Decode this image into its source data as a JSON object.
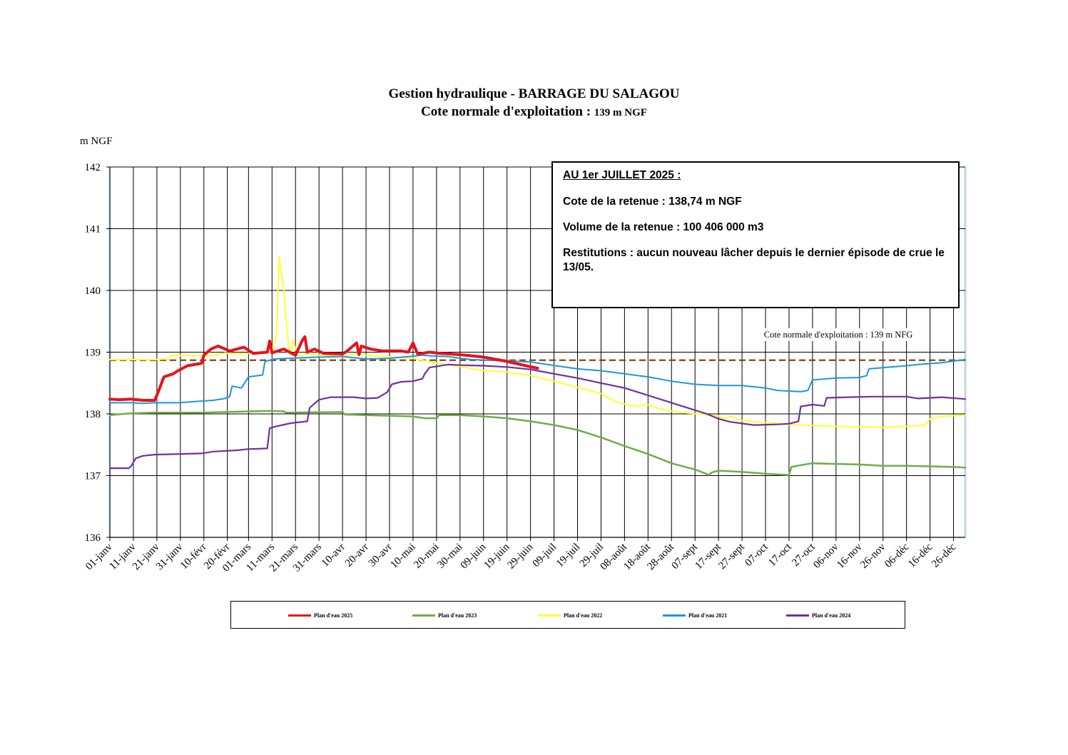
{
  "chart_data": {
    "type": "line",
    "title": "Gestion hydraulique - BARRAGE DU SALAGOU",
    "subtitle_main": "Cote normale d'exploitation : ",
    "subtitle_value": "139 m NGF",
    "ylabel": "m NGF",
    "ylim": [
      136,
      142
    ],
    "yticks": [
      "136",
      "137",
      "138",
      "139",
      "140",
      "141",
      "142"
    ],
    "xlim": [
      1,
      365
    ],
    "grid": true,
    "x_ticks": [
      {
        "day": 1,
        "label": "01-janv"
      },
      {
        "day": 11,
        "label": "11-janv"
      },
      {
        "day": 21,
        "label": "21-janv"
      },
      {
        "day": 31,
        "label": "31-janv"
      },
      {
        "day": 41,
        "label": "10-févr"
      },
      {
        "day": 51,
        "label": "20-févr"
      },
      {
        "day": 60,
        "label": "01-mars"
      },
      {
        "day": 70,
        "label": "11-mars"
      },
      {
        "day": 80,
        "label": "21-mars"
      },
      {
        "day": 90,
        "label": "31-mars"
      },
      {
        "day": 100,
        "label": "10-avr"
      },
      {
        "day": 110,
        "label": "20-avr"
      },
      {
        "day": 120,
        "label": "30-avr"
      },
      {
        "day": 130,
        "label": "10-mai"
      },
      {
        "day": 140,
        "label": "20-mai"
      },
      {
        "day": 150,
        "label": "30-mai"
      },
      {
        "day": 160,
        "label": "09-juin"
      },
      {
        "day": 170,
        "label": "19-juin"
      },
      {
        "day": 180,
        "label": "29-juin"
      },
      {
        "day": 190,
        "label": "09-juil"
      },
      {
        "day": 200,
        "label": "19-juil"
      },
      {
        "day": 210,
        "label": "29-juil"
      },
      {
        "day": 220,
        "label": "08-août"
      },
      {
        "day": 230,
        "label": "18-août"
      },
      {
        "day": 240,
        "label": "28-août"
      },
      {
        "day": 250,
        "label": "07-sept"
      },
      {
        "day": 260,
        "label": "17-sept"
      },
      {
        "day": 270,
        "label": "27-sept"
      },
      {
        "day": 280,
        "label": "07-oct"
      },
      {
        "day": 290,
        "label": "17-oct"
      },
      {
        "day": 300,
        "label": "27-oct"
      },
      {
        "day": 310,
        "label": "06-nov"
      },
      {
        "day": 320,
        "label": "16-nov"
      },
      {
        "day": 330,
        "label": "26-nov"
      },
      {
        "day": 340,
        "label": "06-déc"
      },
      {
        "day": 350,
        "label": "16-déc"
      },
      {
        "day": 360,
        "label": "26-déc"
      }
    ],
    "reference_line": {
      "label": "Cote normale d'exploitation : 139 m NFG",
      "value": 138.87,
      "color": "#7a4a12"
    },
    "series": [
      {
        "name": "Plan d'eau 2023",
        "color": "#70ad47",
        "width": 2.5,
        "points": [
          [
            1,
            137.98
          ],
          [
            10,
            138.01
          ],
          [
            20,
            138.02
          ],
          [
            40,
            138.02
          ],
          [
            60,
            138.04
          ],
          [
            70,
            138.05
          ],
          [
            75,
            138.04
          ],
          [
            76,
            138.02
          ],
          [
            100,
            138.03
          ],
          [
            101,
            137.99
          ],
          [
            110,
            137.98
          ],
          [
            130,
            137.96
          ],
          [
            135,
            137.93
          ],
          [
            140,
            137.93
          ],
          [
            141,
            137.98
          ],
          [
            150,
            137.98
          ],
          [
            160,
            137.96
          ],
          [
            170,
            137.93
          ],
          [
            180,
            137.88
          ],
          [
            190,
            137.82
          ],
          [
            200,
            137.74
          ],
          [
            210,
            137.62
          ],
          [
            220,
            137.48
          ],
          [
            230,
            137.35
          ],
          [
            240,
            137.2
          ],
          [
            250,
            137.1
          ],
          [
            256,
            137.01
          ],
          [
            257,
            137.05
          ],
          [
            260,
            137.08
          ],
          [
            270,
            137.06
          ],
          [
            280,
            137.03
          ],
          [
            290,
            137.01
          ],
          [
            291,
            137.14
          ],
          [
            295,
            137.17
          ],
          [
            300,
            137.2
          ],
          [
            310,
            137.19
          ],
          [
            320,
            137.18
          ],
          [
            330,
            137.16
          ],
          [
            340,
            137.16
          ],
          [
            350,
            137.15
          ],
          [
            360,
            137.14
          ],
          [
            365,
            137.13
          ]
        ]
      },
      {
        "name": "Plan d'eau 2022",
        "color": "#ffff33",
        "width": 2,
        "points": [
          [
            1,
            138.88
          ],
          [
            20,
            138.88
          ],
          [
            26,
            138.89
          ],
          [
            27,
            138.95
          ],
          [
            45,
            138.94
          ],
          [
            50,
            138.99
          ],
          [
            55,
            138.97
          ],
          [
            65,
            138.99
          ],
          [
            70,
            139.0
          ],
          [
            72,
            139.3
          ],
          [
            73,
            140.55
          ],
          [
            75,
            140.0
          ],
          [
            77,
            139.1
          ],
          [
            78,
            138.95
          ],
          [
            79,
            139.2
          ],
          [
            81,
            138.93
          ],
          [
            85,
            138.98
          ],
          [
            90,
            138.95
          ],
          [
            95,
            138.95
          ],
          [
            100,
            138.92
          ],
          [
            105,
            138.98
          ],
          [
            110,
            138.95
          ],
          [
            130,
            138.9
          ],
          [
            140,
            138.82
          ],
          [
            150,
            138.77
          ],
          [
            160,
            138.7
          ],
          [
            170,
            138.68
          ],
          [
            180,
            138.62
          ],
          [
            190,
            138.53
          ],
          [
            200,
            138.43
          ],
          [
            210,
            138.33
          ],
          [
            216,
            138.2
          ],
          [
            222,
            138.14
          ],
          [
            226,
            138.12
          ],
          [
            229,
            138.16
          ],
          [
            235,
            138.08
          ],
          [
            245,
            138.02
          ],
          [
            260,
            137.97
          ],
          [
            262,
            137.92
          ],
          [
            265,
            137.96
          ],
          [
            270,
            137.89
          ],
          [
            280,
            137.86
          ],
          [
            290,
            137.83
          ],
          [
            300,
            137.81
          ],
          [
            310,
            137.8
          ],
          [
            318,
            137.79
          ],
          [
            325,
            137.79
          ],
          [
            330,
            137.78
          ],
          [
            340,
            137.8
          ],
          [
            348,
            137.82
          ],
          [
            350,
            137.92
          ],
          [
            355,
            137.96
          ],
          [
            365,
            137.98
          ]
        ]
      },
      {
        "name": "Plan d'eau 2021",
        "color": "#1f96dd",
        "width": 2,
        "points": [
          [
            1,
            138.18
          ],
          [
            10,
            138.18
          ],
          [
            15,
            138.17
          ],
          [
            20,
            138.18
          ],
          [
            30,
            138.18
          ],
          [
            37,
            138.2
          ],
          [
            45,
            138.22
          ],
          [
            50,
            138.25
          ],
          [
            52,
            138.28
          ],
          [
            53,
            138.45
          ],
          [
            57,
            138.42
          ],
          [
            60,
            138.6
          ],
          [
            66,
            138.63
          ],
          [
            67,
            138.85
          ],
          [
            71,
            138.89
          ],
          [
            90,
            138.92
          ],
          [
            100,
            138.93
          ],
          [
            110,
            138.89
          ],
          [
            120,
            138.9
          ],
          [
            134,
            138.95
          ],
          [
            138,
            138.94
          ],
          [
            145,
            138.93
          ],
          [
            150,
            138.9
          ],
          [
            155,
            138.88
          ],
          [
            175,
            138.85
          ],
          [
            180,
            138.84
          ],
          [
            200,
            138.73
          ],
          [
            210,
            138.7
          ],
          [
            220,
            138.65
          ],
          [
            230,
            138.6
          ],
          [
            240,
            138.53
          ],
          [
            250,
            138.48
          ],
          [
            260,
            138.46
          ],
          [
            270,
            138.46
          ],
          [
            280,
            138.42
          ],
          [
            285,
            138.38
          ],
          [
            295,
            138.36
          ],
          [
            298,
            138.38
          ],
          [
            300,
            138.55
          ],
          [
            310,
            138.58
          ],
          [
            320,
            138.59
          ],
          [
            323,
            138.62
          ],
          [
            324,
            138.73
          ],
          [
            340,
            138.78
          ],
          [
            345,
            138.8
          ],
          [
            355,
            138.83
          ],
          [
            365,
            138.88
          ]
        ]
      },
      {
        "name": "Plan d'eau 2024",
        "color": "#7030a0",
        "width": 2.2,
        "points": [
          [
            1,
            137.12
          ],
          [
            5,
            137.12
          ],
          [
            9,
            137.12
          ],
          [
            10,
            137.15
          ],
          [
            12,
            137.28
          ],
          [
            15,
            137.32
          ],
          [
            20,
            137.34
          ],
          [
            40,
            137.36
          ],
          [
            45,
            137.39
          ],
          [
            55,
            137.41
          ],
          [
            60,
            137.43
          ],
          [
            68,
            137.44
          ],
          [
            69,
            137.77
          ],
          [
            72,
            137.8
          ],
          [
            78,
            137.85
          ],
          [
            85,
            137.88
          ],
          [
            86,
            138.1
          ],
          [
            90,
            138.23
          ],
          [
            95,
            138.27
          ],
          [
            105,
            138.27
          ],
          [
            110,
            138.25
          ],
          [
            115,
            138.26
          ],
          [
            119,
            138.35
          ],
          [
            121,
            138.48
          ],
          [
            125,
            138.52
          ],
          [
            130,
            138.53
          ],
          [
            134,
            138.57
          ],
          [
            135,
            138.65
          ],
          [
            137,
            138.75
          ],
          [
            145,
            138.8
          ],
          [
            150,
            138.79
          ],
          [
            160,
            138.78
          ],
          [
            170,
            138.76
          ],
          [
            180,
            138.72
          ],
          [
            190,
            138.65
          ],
          [
            200,
            138.58
          ],
          [
            210,
            138.5
          ],
          [
            220,
            138.42
          ],
          [
            230,
            138.3
          ],
          [
            240,
            138.18
          ],
          [
            250,
            138.06
          ],
          [
            255,
            138.0
          ],
          [
            260,
            137.92
          ],
          [
            265,
            137.87
          ],
          [
            275,
            137.82
          ],
          [
            285,
            137.83
          ],
          [
            290,
            137.84
          ],
          [
            294,
            137.88
          ],
          [
            295,
            138.12
          ],
          [
            300,
            138.15
          ],
          [
            305,
            138.13
          ],
          [
            306,
            138.26
          ],
          [
            315,
            138.27
          ],
          [
            325,
            138.28
          ],
          [
            340,
            138.28
          ],
          [
            345,
            138.25
          ],
          [
            355,
            138.27
          ],
          [
            365,
            138.24
          ]
        ]
      },
      {
        "name": "Plan d'eau 2025",
        "color": "#e8121c",
        "width": 4,
        "points": [
          [
            1,
            138.24
          ],
          [
            5,
            138.23
          ],
          [
            10,
            138.24
          ],
          [
            15,
            138.22
          ],
          [
            20,
            138.22
          ],
          [
            21,
            138.3
          ],
          [
            24,
            138.6
          ],
          [
            28,
            138.65
          ],
          [
            30,
            138.7
          ],
          [
            34,
            138.78
          ],
          [
            40,
            138.82
          ],
          [
            41,
            138.95
          ],
          [
            44,
            139.05
          ],
          [
            47,
            139.1
          ],
          [
            52,
            139.02
          ],
          [
            55,
            139.05
          ],
          [
            58,
            139.08
          ],
          [
            62,
            138.98
          ],
          [
            68,
            139.0
          ],
          [
            69,
            139.18
          ],
          [
            70,
            138.99
          ],
          [
            75,
            139.05
          ],
          [
            80,
            138.95
          ],
          [
            83,
            139.2
          ],
          [
            84,
            139.25
          ],
          [
            85,
            139.0
          ],
          [
            88,
            139.05
          ],
          [
            92,
            138.98
          ],
          [
            100,
            138.97
          ],
          [
            102,
            139.02
          ],
          [
            106,
            139.15
          ],
          [
            107,
            138.96
          ],
          [
            108,
            139.1
          ],
          [
            112,
            139.05
          ],
          [
            117,
            139.02
          ],
          [
            125,
            139.02
          ],
          [
            128,
            139.0
          ],
          [
            130,
            139.15
          ],
          [
            132,
            138.97
          ],
          [
            137,
            139.0
          ],
          [
            142,
            138.98
          ],
          [
            150,
            138.96
          ],
          [
            160,
            138.92
          ],
          [
            170,
            138.85
          ],
          [
            178,
            138.78
          ],
          [
            183,
            138.74
          ]
        ]
      }
    ]
  },
  "infobox": {
    "heading": "AU 1er JUILLET 2025 :",
    "cote": "Cote de la retenue : 138,74 m NGF",
    "volume": "Volume de la retenue : 100 406 000 m3",
    "restitutions": "Restitutions : aucun nouveau lâcher depuis le dernier épisode de crue le 13/05."
  },
  "legend": {
    "items": [
      {
        "label": "Plan d'eau 2025",
        "color": "#e8121c"
      },
      {
        "label": "Plan d'eau 2023",
        "color": "#70ad47"
      },
      {
        "label": "Plan d'eau 2022",
        "color": "#ffff33"
      },
      {
        "label": "Plan d'eau 2021",
        "color": "#1f96dd"
      },
      {
        "label": "Plan d'eau 2024",
        "color": "#7030a0"
      }
    ]
  }
}
